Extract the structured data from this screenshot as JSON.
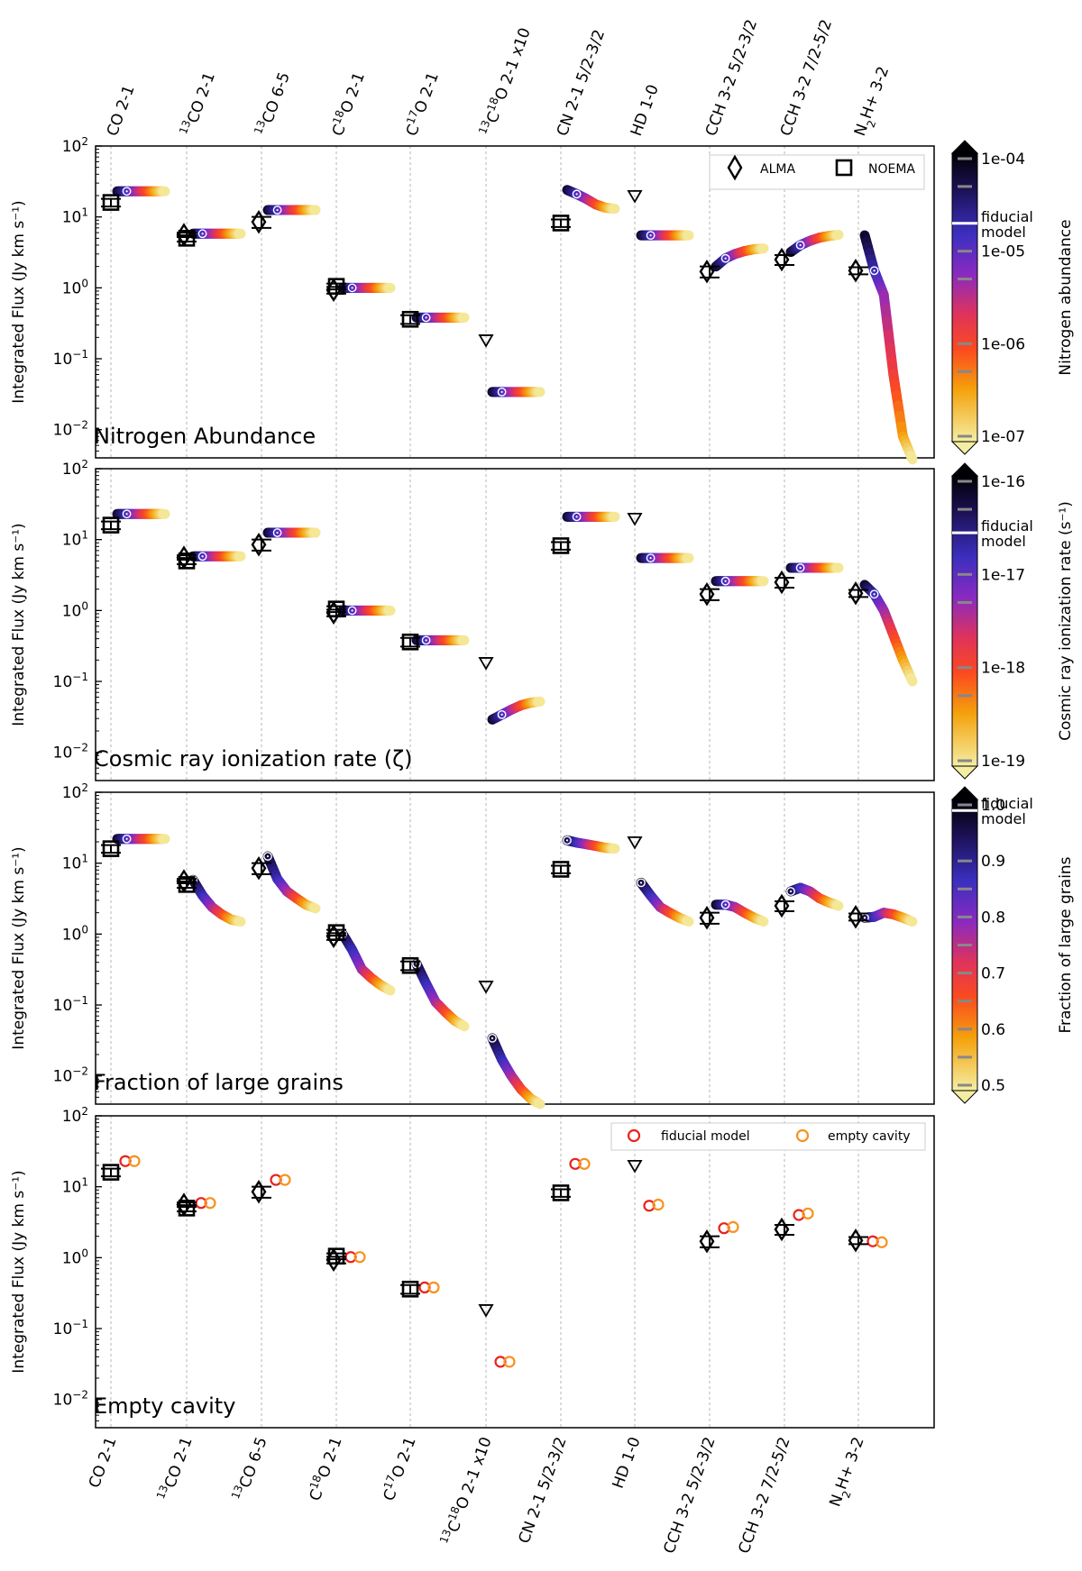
{
  "chart_data": {
    "type": "scatter",
    "figure": "Integrated line fluxes of a protoplanetary disk vs. model parameter sweeps",
    "categories": [
      {
        "id": "co21",
        "label": "CO 2-1"
      },
      {
        "id": "13co21",
        "label": "13CO 2-1",
        "parts": [
          {
            "t": "13",
            "sup": true
          },
          {
            "t": "CO 2-1"
          }
        ]
      },
      {
        "id": "13co65",
        "label": "13CO 6-5",
        "parts": [
          {
            "t": "13",
            "sup": true
          },
          {
            "t": "CO 6-5"
          }
        ]
      },
      {
        "id": "c18o21",
        "label": "C18O 2-1",
        "parts": [
          {
            "t": "C"
          },
          {
            "t": "18",
            "sup": true
          },
          {
            "t": "O 2-1"
          }
        ]
      },
      {
        "id": "c17o21",
        "label": "C17O 2-1",
        "parts": [
          {
            "t": "C"
          },
          {
            "t": "17",
            "sup": true
          },
          {
            "t": "O 2-1"
          }
        ]
      },
      {
        "id": "13c18o21",
        "label": "13C18O 2-1 x10",
        "parts": [
          {
            "t": "13",
            "sup": true
          },
          {
            "t": "C"
          },
          {
            "t": "18",
            "sup": true
          },
          {
            "t": "O 2-1 x10"
          }
        ]
      },
      {
        "id": "cn21",
        "label": "CN 2-1 5/2-3/2"
      },
      {
        "id": "hd10",
        "label": "HD 1-0"
      },
      {
        "id": "cch32a",
        "label": "CCH 3-2 5/2-3/2"
      },
      {
        "id": "cch32b",
        "label": "CCH 3-2 7/2-5/2"
      },
      {
        "id": "n2h32",
        "label": "N2H+ 3-2",
        "parts": [
          {
            "t": "N"
          },
          {
            "t": "2",
            "sub": true
          },
          {
            "t": "H+ 3-2"
          }
        ]
      }
    ],
    "y_axis": {
      "label": "Integrated Flux (Jy km s⁻¹)",
      "scale": "log",
      "ylim": [
        0.004,
        100
      ],
      "ticks": [
        0.01,
        0.1,
        1,
        10,
        100
      ],
      "tick_labels": [
        {
          "base": "10",
          "exp": "−2"
        },
        {
          "base": "10",
          "exp": "−1"
        },
        {
          "base": "10",
          "exp": "0"
        },
        {
          "base": "10",
          "exp": "1"
        },
        {
          "base": "10",
          "exp": "2"
        }
      ]
    },
    "observations": {
      "alma": [
        {
          "cat": "13co21",
          "y": 5.6,
          "err": 0.4
        },
        {
          "cat": "13co65",
          "y": 8.5,
          "err": 1.5
        },
        {
          "cat": "c18o21",
          "y": 0.93,
          "err": 0.1
        },
        {
          "cat": "cch32a",
          "y": 1.7,
          "err": 0.3
        },
        {
          "cat": "cch32b",
          "y": 2.5,
          "err": 0.4
        },
        {
          "cat": "n2h32",
          "y": 1.75,
          "err": 0.2
        }
      ],
      "noema": [
        {
          "cat": "co21",
          "y": 16,
          "err": 2
        },
        {
          "cat": "13co21",
          "y": 5.0,
          "err": 0.5
        },
        {
          "cat": "c18o21",
          "y": 1.05,
          "err": 0.1
        },
        {
          "cat": "c17o21",
          "y": 0.36,
          "err": 0.05
        },
        {
          "cat": "cn21",
          "y": 8.2,
          "err": 1
        }
      ],
      "upper_limits": [
        {
          "cat": "13c18o21",
          "y": 0.18
        },
        {
          "cat": "hd10",
          "y": 19.5
        }
      ]
    },
    "panels": [
      {
        "id": "nitrogen",
        "title": "Nitrogen Abundance",
        "legend": [
          {
            "marker": "diamond",
            "label": "ALMA"
          },
          {
            "marker": "square",
            "label": "NOEMA"
          }
        ],
        "colorbar": {
          "label": "Nitrogen abundance",
          "scale": "log",
          "range": [
            1e-07,
            0.0001
          ],
          "ticks": [
            {
              "v": 0.0001,
              "label": "1e-04"
            },
            {
              "v": 1e-05,
              "label": "1e-05"
            },
            {
              "v": 1e-06,
              "label": "1e-06"
            },
            {
              "v": 1e-07,
              "label": "1e-07"
            }
          ],
          "minor_ticks": [
            5e-05,
            5e-06,
            5e-07
          ],
          "fiducial": {
            "v": 2e-05,
            "label_lines": [
              "fiducial",
              "model"
            ]
          }
        },
        "tracks": [
          {
            "cat": "co21",
            "values": [
              23,
              23,
              23,
              23,
              23,
              23
            ],
            "fid": 23
          },
          {
            "cat": "13co21",
            "values": [
              5.8,
              5.8,
              5.8,
              5.8,
              5.8,
              5.8
            ],
            "fid": 5.8
          },
          {
            "cat": "13co65",
            "values": [
              12.5,
              12.5,
              12.5,
              12.5,
              12.5,
              12.5
            ],
            "fid": 12.5
          },
          {
            "cat": "c18o21",
            "values": [
              1.0,
              1.0,
              1.0,
              1.0,
              1.0,
              1.0
            ],
            "fid": 1.0
          },
          {
            "cat": "c17o21",
            "values": [
              0.38,
              0.38,
              0.38,
              0.38,
              0.38,
              0.38
            ],
            "fid": 0.38
          },
          {
            "cat": "13c18o21",
            "values": [
              0.034,
              0.034,
              0.034,
              0.034,
              0.034,
              0.034
            ],
            "fid": 0.034
          },
          {
            "cat": "cn21",
            "values": [
              24,
              21,
              18,
              15,
              13.5,
              13
            ],
            "fid": 21
          },
          {
            "cat": "hd10",
            "values": [
              5.5,
              5.5,
              5.5,
              5.5,
              5.5,
              5.5
            ],
            "fid": 5.5
          },
          {
            "cat": "cch32a",
            "values": [
              2.0,
              2.6,
              3.0,
              3.3,
              3.5,
              3.6
            ],
            "fid": 2.6
          },
          {
            "cat": "cch32b",
            "values": [
              3.2,
              4.0,
              4.6,
              5.1,
              5.4,
              5.6
            ],
            "fid": 4.0
          },
          {
            "cat": "n2h32",
            "values": [
              5.5,
              1.75,
              0.8,
              0.06,
              0.008,
              0.0038
            ],
            "fid": 1.75
          }
        ]
      },
      {
        "id": "cosmic",
        "title": "Cosmic ray ionization rate (ζ)",
        "colorbar": {
          "label": "Cosmic ray ionization rate (s⁻¹)",
          "scale": "log",
          "range": [
            1e-19,
            1e-16
          ],
          "ticks": [
            {
              "v": 1e-16,
              "label": "1e-16"
            },
            {
              "v": 1e-17,
              "label": "1e-17"
            },
            {
              "v": 1e-18,
              "label": "1e-18"
            },
            {
              "v": 1e-19,
              "label": "1e-19"
            }
          ],
          "minor_ticks": [
            5e-17,
            5e-18,
            5e-19
          ],
          "fiducial": {
            "v": 2.8e-17,
            "label_lines": [
              "fiducial",
              "model"
            ]
          }
        },
        "tracks": [
          {
            "cat": "co21",
            "values": [
              23,
              23,
              23,
              23,
              23,
              23
            ],
            "fid": 23
          },
          {
            "cat": "13co21",
            "values": [
              5.8,
              5.8,
              5.8,
              5.8,
              5.8,
              5.8
            ],
            "fid": 5.8
          },
          {
            "cat": "13co65",
            "values": [
              12.5,
              12.5,
              12.5,
              12.5,
              12.5,
              12.5
            ],
            "fid": 12.5
          },
          {
            "cat": "c18o21",
            "values": [
              1.0,
              1.0,
              1.0,
              1.0,
              1.0,
              1.0
            ],
            "fid": 1.0
          },
          {
            "cat": "c17o21",
            "values": [
              0.38,
              0.38,
              0.38,
              0.38,
              0.38,
              0.38
            ],
            "fid": 0.38
          },
          {
            "cat": "13c18o21",
            "values": [
              0.029,
              0.034,
              0.04,
              0.046,
              0.05,
              0.052
            ],
            "fid": 0.034
          },
          {
            "cat": "cn21",
            "values": [
              21,
              21,
              21,
              21,
              21,
              21
            ],
            "fid": 21
          },
          {
            "cat": "hd10",
            "values": [
              5.5,
              5.5,
              5.5,
              5.5,
              5.5,
              5.5
            ],
            "fid": 5.5
          },
          {
            "cat": "cch32a",
            "values": [
              2.6,
              2.6,
              2.6,
              2.6,
              2.6,
              2.6
            ],
            "fid": 2.6
          },
          {
            "cat": "cch32b",
            "values": [
              4.0,
              4.0,
              4.0,
              4.0,
              4.0,
              4.0
            ],
            "fid": 4.0
          },
          {
            "cat": "n2h32",
            "values": [
              2.3,
              1.7,
              1.0,
              0.45,
              0.2,
              0.1
            ],
            "fid": 1.7
          }
        ]
      },
      {
        "id": "grains",
        "title": "Fraction of large grains",
        "colorbar": {
          "label": "Fraction of large grains",
          "scale": "linear",
          "range": [
            0.5,
            1.0
          ],
          "ticks": [
            {
              "v": 1.0,
              "label": "1.0"
            },
            {
              "v": 0.9,
              "label": "0.9"
            },
            {
              "v": 0.8,
              "label": "0.8"
            },
            {
              "v": 0.7,
              "label": "0.7"
            },
            {
              "v": 0.6,
              "label": "0.6"
            },
            {
              "v": 0.5,
              "label": "0.5"
            }
          ],
          "minor_ticks": [
            0.85,
            0.75,
            0.65,
            0.55
          ],
          "fiducial": {
            "v": 0.99,
            "label_lines": [
              "fiducial",
              "model"
            ]
          }
        },
        "tracks": [
          {
            "cat": "co21",
            "values": [
              22,
              22,
              22,
              22,
              22,
              22
            ],
            "fid": 22
          },
          {
            "cat": "13co21",
            "values": [
              5.8,
              3.5,
              2.4,
              1.9,
              1.6,
              1.5
            ],
            "fid": 5.8
          },
          {
            "cat": "13co65",
            "values": [
              12.5,
              6.0,
              4.0,
              3.2,
              2.6,
              2.3
            ],
            "fid": 12.5
          },
          {
            "cat": "c18o21",
            "values": [
              1.0,
              0.6,
              0.32,
              0.24,
              0.19,
              0.16
            ],
            "fid": 1.0
          },
          {
            "cat": "c17o21",
            "values": [
              0.38,
              0.2,
              0.11,
              0.08,
              0.06,
              0.05
            ],
            "fid": 0.38
          },
          {
            "cat": "13c18o21",
            "values": [
              0.034,
              0.017,
              0.01,
              0.0065,
              0.0048,
              0.004
            ],
            "fid": 0.034
          },
          {
            "cat": "cn21",
            "values": [
              21,
              19.5,
              18.5,
              17.5,
              16.5,
              16
            ],
            "fid": 21
          },
          {
            "cat": "hd10",
            "values": [
              5.3,
              3.5,
              2.4,
              2.0,
              1.7,
              1.5
            ],
            "fid": 5.3
          },
          {
            "cat": "cch32a",
            "values": [
              2.6,
              2.6,
              2.4,
              2.0,
              1.7,
              1.5
            ],
            "fid": 2.6
          },
          {
            "cat": "cch32b",
            "values": [
              4.0,
              4.5,
              4.0,
              3.2,
              2.8,
              2.5
            ],
            "fid": 4.0
          },
          {
            "cat": "n2h32",
            "values": [
              1.7,
              1.75,
              2.0,
              1.9,
              1.7,
              1.5
            ],
            "fid": 1.7
          }
        ]
      },
      {
        "id": "cavity",
        "title": "Empty cavity",
        "legend": [
          {
            "marker": "circle-red",
            "label": "fiducial model"
          },
          {
            "marker": "circle-orange",
            "label": "empty cavity"
          }
        ],
        "models": [
          {
            "cat": "co21",
            "fiducial": 23,
            "empty_cavity": 23
          },
          {
            "cat": "13co21",
            "fiducial": 5.9,
            "empty_cavity": 5.9
          },
          {
            "cat": "13co65",
            "fiducial": 12.5,
            "empty_cavity": 12.5
          },
          {
            "cat": "c18o21",
            "fiducial": 1.02,
            "empty_cavity": 1.02
          },
          {
            "cat": "c17o21",
            "fiducial": 0.38,
            "empty_cavity": 0.38
          },
          {
            "cat": "13c18o21",
            "fiducial": 0.034,
            "empty_cavity": 0.034
          },
          {
            "cat": "cn21",
            "fiducial": 21,
            "empty_cavity": 21
          },
          {
            "cat": "hd10",
            "fiducial": 5.4,
            "empty_cavity": 5.6
          },
          {
            "cat": "cch32a",
            "fiducial": 2.6,
            "empty_cavity": 2.7
          },
          {
            "cat": "cch32b",
            "fiducial": 4.0,
            "empty_cavity": 4.2
          },
          {
            "cat": "n2h32",
            "fiducial": 1.7,
            "empty_cavity": 1.65
          }
        ]
      }
    ]
  }
}
